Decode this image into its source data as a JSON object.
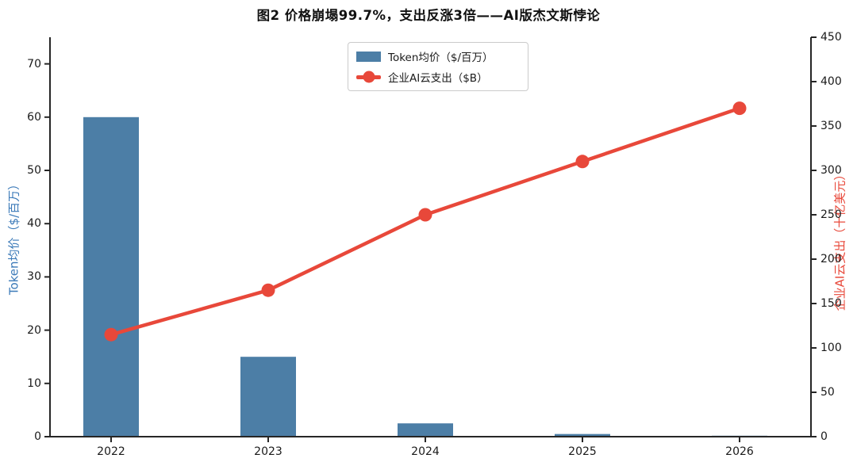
{
  "title": "图2  价格崩塌99.7%，支出反涨3倍——AI版杰文斯悖论",
  "chart_data": {
    "type": "bar",
    "title": "图2  价格崩塌99.7%，支出反涨3倍——AI版杰文斯悖论",
    "categories": [
      "2022",
      "2023",
      "2024",
      "2025",
      "2026"
    ],
    "series": [
      {
        "name": "Token均价（$/百万）",
        "type": "bar",
        "axis": "left",
        "color": "#4c7ea6",
        "values": [
          60,
          15,
          2.5,
          0.5,
          0.18
        ]
      },
      {
        "name": "企业AI云支出（$B）",
        "type": "line",
        "axis": "right",
        "color": "#e8483a",
        "values": [
          115,
          165,
          250,
          310,
          370
        ]
      }
    ],
    "left_axis": {
      "label": "Token均价（$/百万）",
      "color": "#3a79b8",
      "ticks": [
        0,
        10,
        20,
        30,
        40,
        50,
        60,
        70
      ],
      "ylim": [
        0,
        75
      ]
    },
    "right_axis": {
      "label": "企业AI云支出（十亿美元）",
      "color": "#e8483a",
      "ticks": [
        0,
        50,
        100,
        150,
        200,
        250,
        300,
        350,
        400,
        450
      ],
      "ylim": [
        0,
        450
      ]
    },
    "legend": {
      "position": "upper center",
      "entries": [
        "Token均价（$/百万）",
        "企业AI云支出（$B）"
      ]
    },
    "grid": false,
    "spine_color": "#262626"
  }
}
